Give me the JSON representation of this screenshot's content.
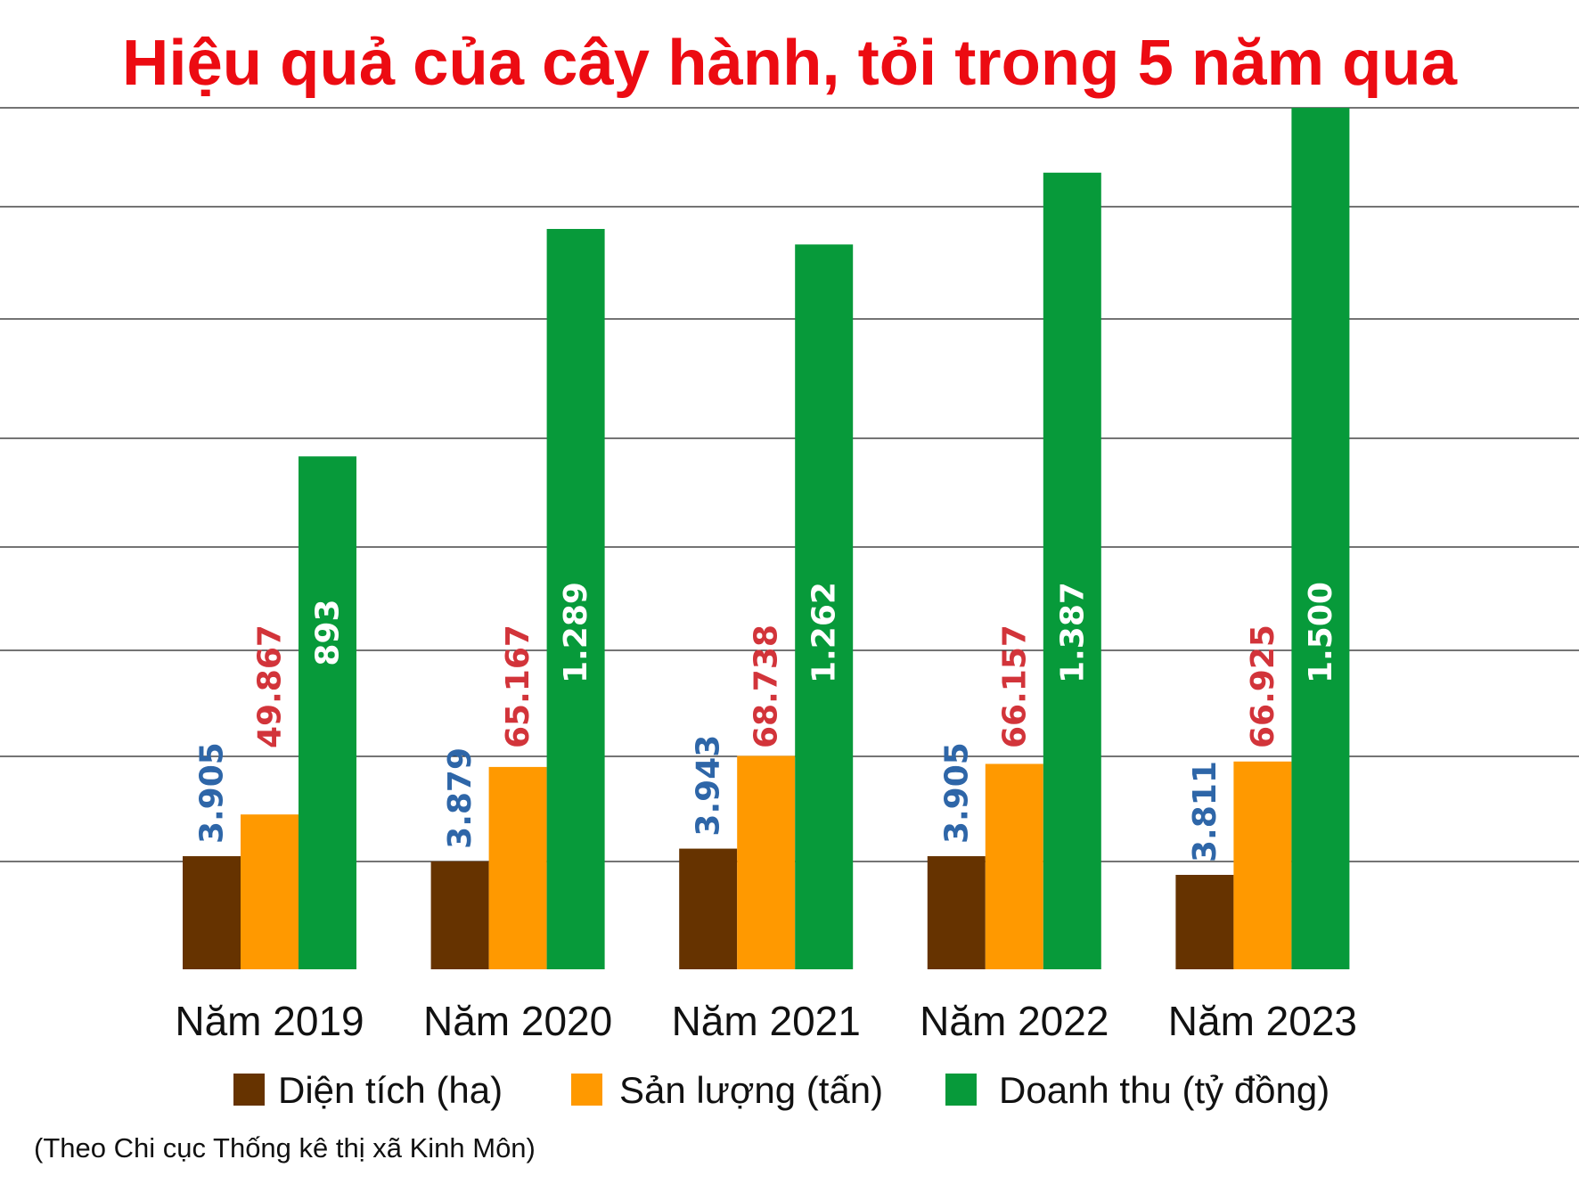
{
  "chart_data": {
    "type": "bar",
    "title": "Hiệu quả của cây hành, tỏi trong 5 năm qua",
    "categories": [
      "Năm 2019",
      "Năm 2020",
      "Năm 2021",
      "Năm 2022",
      "Năm 2023"
    ],
    "series": [
      {
        "name": "Diện tích (ha)",
        "color": "#663300",
        "label_color": "#2e66a8",
        "values": [
          3905,
          3879,
          3943,
          3905,
          3811
        ],
        "labels": [
          "3.905",
          "3.879",
          "3.943",
          "3.905",
          "3.811"
        ]
      },
      {
        "name": "Sản lượng (tấn)",
        "color": "#ff9900",
        "label_color": "#d2343a",
        "values": [
          49867,
          65167,
          68738,
          66157,
          66925
        ],
        "labels": [
          "49.867",
          "65.167",
          "68.738",
          "66.157",
          "66.925"
        ]
      },
      {
        "name": "Doanh thu (tỷ đồng)",
        "color": "#079a3a",
        "label_color": "#ffffff",
        "values": [
          893,
          1289,
          1262,
          1387,
          1500
        ],
        "labels": [
          "893",
          "1.289",
          "1.262",
          "1.387",
          "1.500"
        ]
      }
    ],
    "grid": true,
    "legend": "bottom",
    "source": "(Theo Chi cục Thống kê thị xã Kinh Môn)"
  }
}
